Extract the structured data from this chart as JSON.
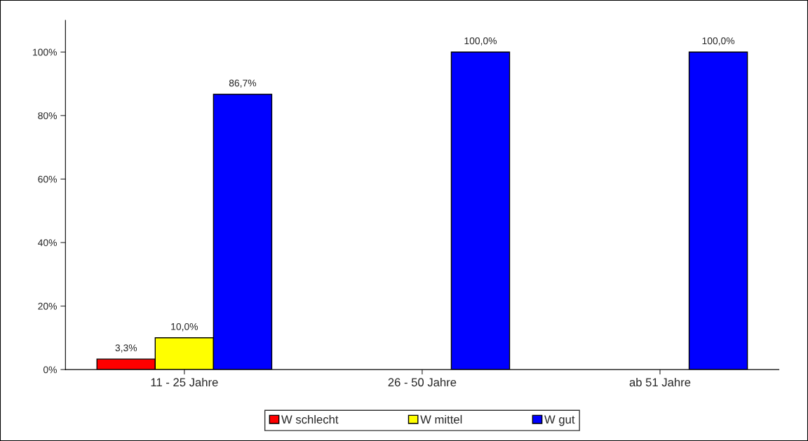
{
  "chart_data": {
    "type": "bar",
    "categories": [
      "11 - 25 Jahre",
      "26 - 50 Jahre",
      "ab 51 Jahre"
    ],
    "series": [
      {
        "name": "W schlecht",
        "color": "#ff0000",
        "values": [
          3.3,
          null,
          null
        ],
        "value_labels": [
          "3,3%",
          null,
          null
        ]
      },
      {
        "name": "W mittel",
        "color": "#ffff00",
        "values": [
          10.0,
          null,
          null
        ],
        "value_labels": [
          "10,0%",
          null,
          null
        ]
      },
      {
        "name": "W gut",
        "color": "#0000ff",
        "values": [
          86.7,
          100.0,
          100.0
        ],
        "value_labels": [
          "86,7%",
          "100,0%",
          "100,0%"
        ]
      }
    ],
    "ylim": [
      0,
      110
    ],
    "yticks": [
      {
        "value": 0,
        "label": "0%"
      },
      {
        "value": 20,
        "label": "20%"
      },
      {
        "value": 40,
        "label": "40%"
      },
      {
        "value": 60,
        "label": "60%"
      },
      {
        "value": 80,
        "label": "80%"
      },
      {
        "value": 100,
        "label": "100%"
      }
    ],
    "grid": false,
    "legend": "bottom"
  }
}
